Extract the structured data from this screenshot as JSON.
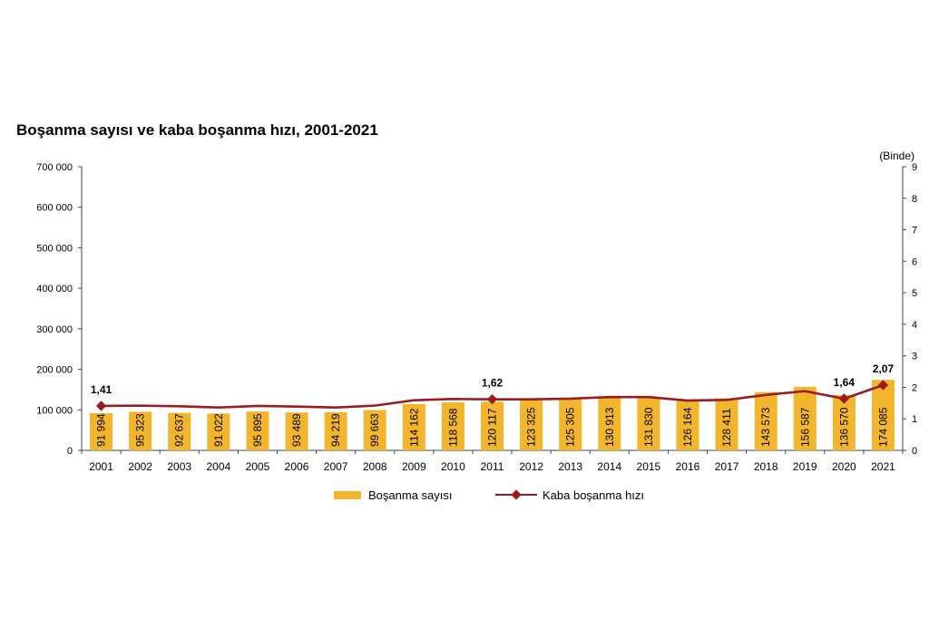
{
  "title": "Boşanma sayısı ve kaba boşanma hızı, 2001-2021",
  "colors": {
    "bar": "#f2b52c",
    "line": "#9b1c1f",
    "axis": "#444444"
  },
  "chart_data": {
    "type": "bar",
    "title": "Boşanma sayısı ve kaba boşanma hızı, 2001-2021",
    "categories": [
      "2001",
      "2002",
      "2003",
      "2004",
      "2005",
      "2006",
      "2007",
      "2008",
      "2009",
      "2010",
      "2011",
      "2012",
      "2013",
      "2014",
      "2015",
      "2016",
      "2017",
      "2018",
      "2019",
      "2020",
      "2021"
    ],
    "series": [
      {
        "name": "Boşanma sayısı",
        "type": "bar",
        "axis": "left",
        "values": [
          91994,
          95323,
          92637,
          91022,
          95895,
          93489,
          94219,
          99663,
          114162,
          118568,
          120117,
          123325,
          125305,
          130913,
          131830,
          126164,
          128411,
          143573,
          156587,
          136570,
          174085
        ],
        "labels": [
          "91 994",
          "95 323",
          "92 637",
          "91 022",
          "95 895",
          "93 489",
          "94 219",
          "99 663",
          "114 162",
          "118 568",
          "120 117",
          "123 325",
          "125 305",
          "130 913",
          "131 830",
          "126 164",
          "128 411",
          "143 573",
          "156 587",
          "136 570",
          "174 085"
        ]
      },
      {
        "name": "Kaba boşanma hızı",
        "type": "line",
        "axis": "right",
        "values": [
          1.41,
          1.42,
          1.4,
          1.36,
          1.41,
          1.39,
          1.36,
          1.42,
          1.59,
          1.63,
          1.62,
          1.62,
          1.64,
          1.69,
          1.69,
          1.58,
          1.6,
          1.76,
          1.88,
          1.64,
          2.07
        ],
        "annotations": [
          {
            "index": 0,
            "text": "1,41"
          },
          {
            "index": 10,
            "text": "1,62"
          },
          {
            "index": 19,
            "text": "1,64"
          },
          {
            "index": 20,
            "text": "2,07"
          }
        ]
      }
    ],
    "y_left": {
      "ylim": [
        0,
        700000
      ],
      "ticks": [
        0,
        100000,
        200000,
        300000,
        400000,
        500000,
        600000,
        700000
      ],
      "tick_labels": [
        "0",
        "100 000",
        "200 000",
        "300 000",
        "400 000",
        "500 000",
        "600 000",
        "700 000"
      ]
    },
    "y_right": {
      "label": "(Binde)",
      "ylim": [
        0,
        9
      ],
      "ticks": [
        0,
        1,
        2,
        3,
        4,
        5,
        6,
        7,
        8,
        9
      ],
      "tick_labels": [
        "0",
        "1",
        "2",
        "3",
        "4",
        "5",
        "6",
        "7",
        "8",
        "9"
      ]
    },
    "grid": false,
    "legend": "bottom"
  }
}
